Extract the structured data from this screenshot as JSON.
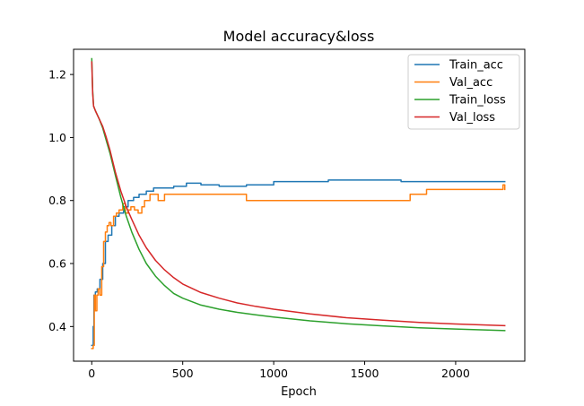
{
  "chart_data": {
    "type": "line",
    "title": "Model accuracy&loss",
    "xlabel": "Epoch",
    "ylabel": "",
    "xlim": [
      -100,
      2380
    ],
    "ylim": [
      0.29,
      1.28
    ],
    "xticks": [
      0,
      500,
      1000,
      1500,
      2000
    ],
    "xtick_labels": [
      "0",
      "500",
      "1000",
      "1500",
      "2000"
    ],
    "yticks": [
      0.4,
      0.6,
      0.8,
      1.0,
      1.2
    ],
    "ytick_labels": [
      "0.4",
      "0.6",
      "0.8",
      "1.0",
      "1.2"
    ],
    "grid": false,
    "legend_position": "top-right",
    "series": [
      {
        "name": "Train_acc",
        "color": "#1f77b4",
        "x": [
          0,
          8,
          12,
          20,
          30,
          45,
          60,
          75,
          90,
          110,
          130,
          150,
          175,
          200,
          230,
          260,
          300,
          340,
          400,
          450,
          520,
          600,
          700,
          850,
          1000,
          1100,
          1300,
          1500,
          1670,
          1700,
          1800,
          2000,
          2270
        ],
        "y": [
          0.34,
          0.4,
          0.5,
          0.51,
          0.52,
          0.55,
          0.6,
          0.67,
          0.69,
          0.72,
          0.75,
          0.76,
          0.78,
          0.8,
          0.81,
          0.82,
          0.83,
          0.84,
          0.84,
          0.845,
          0.855,
          0.85,
          0.845,
          0.85,
          0.86,
          0.86,
          0.865,
          0.865,
          0.865,
          0.86,
          0.86,
          0.86,
          0.86
        ]
      },
      {
        "name": "Val_acc",
        "color": "#ff7f0e",
        "x": [
          0,
          8,
          14,
          20,
          28,
          35,
          45,
          55,
          65,
          75,
          85,
          95,
          105,
          120,
          135,
          150,
          170,
          185,
          200,
          215,
          235,
          255,
          275,
          290,
          305,
          320,
          345,
          365,
          390,
          400,
          500,
          600,
          700,
          845,
          850,
          1000,
          1200,
          1500,
          1740,
          1750,
          1830,
          1840,
          2000,
          2200,
          2240,
          2260,
          2270
        ],
        "y": [
          0.33,
          0.34,
          0.5,
          0.45,
          0.5,
          0.52,
          0.5,
          0.59,
          0.67,
          0.7,
          0.72,
          0.73,
          0.72,
          0.75,
          0.76,
          0.77,
          0.79,
          0.76,
          0.77,
          0.78,
          0.77,
          0.76,
          0.78,
          0.8,
          0.8,
          0.82,
          0.82,
          0.8,
          0.8,
          0.82,
          0.82,
          0.82,
          0.82,
          0.82,
          0.8,
          0.8,
          0.8,
          0.8,
          0.8,
          0.82,
          0.82,
          0.835,
          0.835,
          0.835,
          0.835,
          0.85,
          0.835
        ]
      },
      {
        "name": "Train_loss",
        "color": "#2ca02c",
        "x": [
          0,
          5,
          10,
          20,
          40,
          60,
          80,
          100,
          130,
          160,
          190,
          220,
          260,
          300,
          350,
          400,
          450,
          500,
          600,
          700,
          800,
          900,
          1000,
          1200,
          1400,
          1600,
          1800,
          2000,
          2270
        ],
        "y": [
          1.25,
          1.15,
          1.1,
          1.085,
          1.06,
          1.03,
          0.99,
          0.95,
          0.88,
          0.81,
          0.75,
          0.7,
          0.645,
          0.6,
          0.56,
          0.53,
          0.505,
          0.49,
          0.468,
          0.455,
          0.445,
          0.437,
          0.43,
          0.418,
          0.409,
          0.402,
          0.396,
          0.392,
          0.387
        ]
      },
      {
        "name": "Val_loss",
        "color": "#d62728",
        "x": [
          0,
          5,
          10,
          20,
          40,
          60,
          80,
          100,
          130,
          160,
          190,
          220,
          260,
          300,
          350,
          400,
          450,
          500,
          600,
          700,
          800,
          900,
          1000,
          1200,
          1400,
          1600,
          1800,
          2000,
          2270
        ],
        "y": [
          1.24,
          1.14,
          1.1,
          1.085,
          1.06,
          1.035,
          1.0,
          0.96,
          0.89,
          0.83,
          0.78,
          0.74,
          0.69,
          0.65,
          0.61,
          0.58,
          0.555,
          0.535,
          0.508,
          0.49,
          0.475,
          0.464,
          0.455,
          0.44,
          0.428,
          0.42,
          0.413,
          0.408,
          0.403
        ]
      }
    ]
  }
}
